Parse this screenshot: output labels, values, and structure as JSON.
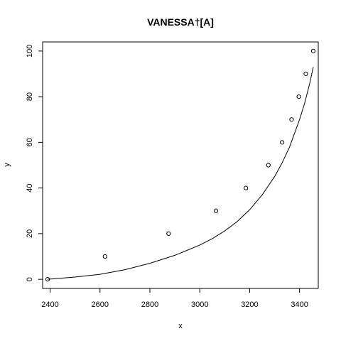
{
  "chart_data": {
    "type": "scatter",
    "title": "VANESSA†[A]",
    "xlabel": "x",
    "ylabel": "y",
    "xlim": [
      2370,
      3475
    ],
    "ylim": [
      -4,
      104
    ],
    "xticks": [
      2400,
      2600,
      2800,
      3000,
      3200,
      3400
    ],
    "yticks": [
      0,
      20,
      40,
      60,
      80,
      100
    ],
    "grid": false,
    "legend": "none",
    "colors": {
      "axis": "#000000",
      "points": "#000000",
      "line": "#000000",
      "background": "#ffffff"
    },
    "series": [
      {
        "kind": "points",
        "marker": "open-circle",
        "x": [
          2390,
          2620,
          2875,
          3065,
          3185,
          3275,
          3330,
          3368,
          3397,
          3425,
          3455
        ],
        "y": [
          0,
          10,
          20,
          30,
          40,
          50,
          60,
          70,
          80,
          90,
          100
        ]
      },
      {
        "kind": "line",
        "x": [
          2390,
          2500,
          2600,
          2700,
          2800,
          2900,
          3000,
          3050,
          3100,
          3150,
          3200,
          3250,
          3300,
          3330,
          3360,
          3380,
          3400,
          3420,
          3440,
          3455
        ],
        "y": [
          0,
          1,
          2.2,
          4.2,
          7,
          10.5,
          15,
          17.8,
          21.2,
          25.3,
          30.5,
          37,
          45,
          51,
          58,
          64,
          70,
          77,
          85.5,
          93
        ]
      }
    ]
  }
}
